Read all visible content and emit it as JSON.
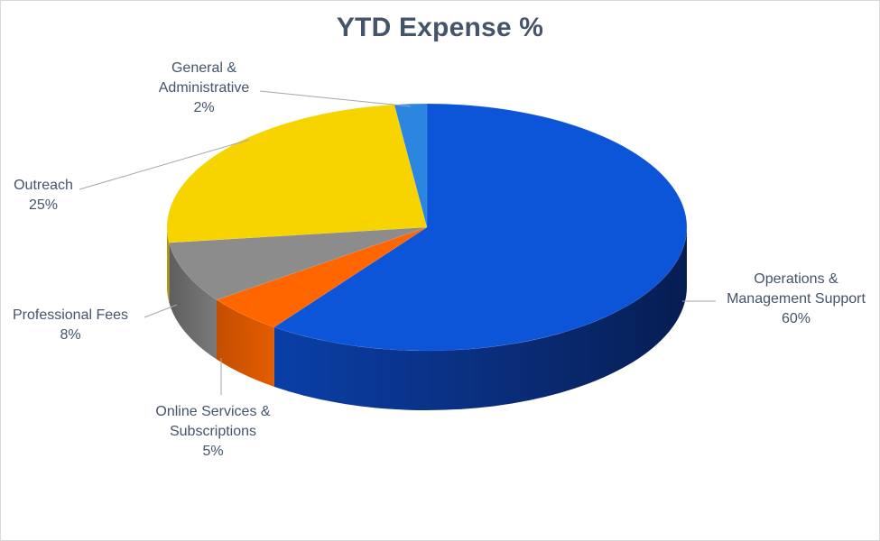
{
  "chart_data": {
    "type": "pie",
    "title": "YTD Expense %",
    "categories": [
      "Operations & Management Support",
      "Online Services & Subscriptions",
      "Professional Fees",
      "Outreach",
      "General & Administrative"
    ],
    "values": [
      60,
      5,
      8,
      25,
      2
    ],
    "colors": [
      "#0c55d9",
      "#ff6600",
      "#8c8c8c",
      "#f7d400",
      "#2b86e2"
    ],
    "data_labels": [
      {
        "lines": [
          "Operations &",
          "Management Support",
          "60%"
        ]
      },
      {
        "lines": [
          "Online Services &",
          "Subscriptions",
          "5%"
        ]
      },
      {
        "lines": [
          "Professional Fees",
          "8%"
        ]
      },
      {
        "lines": [
          "Outreach",
          "25%"
        ]
      },
      {
        "lines": [
          "General &",
          "Administrative",
          "2%"
        ]
      }
    ],
    "style": "3d-pie"
  }
}
